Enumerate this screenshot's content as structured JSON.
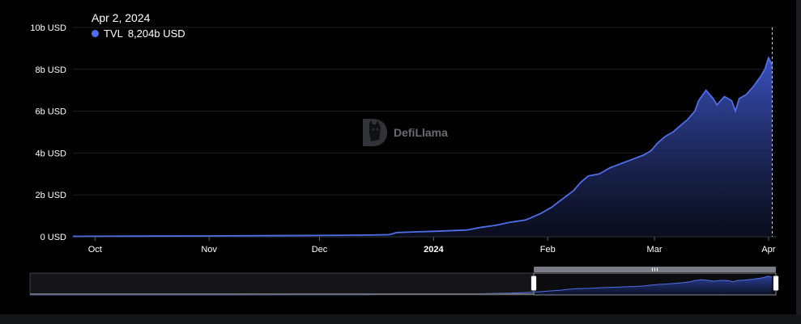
{
  "tooltip": {
    "date": "Apr 2, 2024",
    "series_name": "TVL",
    "value": "8,204b USD"
  },
  "watermark": {
    "text": "DefiLlama"
  },
  "colors": {
    "accent": "#4f6ee8",
    "background": "#000000"
  },
  "chart_data": {
    "type": "area",
    "title": "",
    "xlabel": "",
    "ylabel": "",
    "ylim": [
      0,
      10
    ],
    "y_ticks": [
      {
        "value": 0,
        "label": "0 USD"
      },
      {
        "value": 2,
        "label": "2b USD"
      },
      {
        "value": 4,
        "label": "4b USD"
      },
      {
        "value": 6,
        "label": "6b USD"
      },
      {
        "value": 8,
        "label": "8b USD"
      },
      {
        "value": 10,
        "label": "10b USD"
      }
    ],
    "x_range": [
      "2023-09-25",
      "2024-04-03"
    ],
    "x_ticks": [
      {
        "date": "2023-10-01",
        "label": "Oct",
        "bold": false
      },
      {
        "date": "2023-11-01",
        "label": "Nov",
        "bold": false
      },
      {
        "date": "2023-12-01",
        "label": "Dec",
        "bold": false
      },
      {
        "date": "2024-01-01",
        "label": "2024",
        "bold": true
      },
      {
        "date": "2024-02-01",
        "label": "Feb",
        "bold": false
      },
      {
        "date": "2024-03-01",
        "label": "Mar",
        "bold": false
      },
      {
        "date": "2024-04-01",
        "label": "Apr",
        "bold": false
      }
    ],
    "series": [
      {
        "name": "TVL",
        "points": [
          [
            "2023-09-25",
            0.02
          ],
          [
            "2023-10-15",
            0.03
          ],
          [
            "2023-11-01",
            0.04
          ],
          [
            "2023-11-15",
            0.05
          ],
          [
            "2023-12-01",
            0.06
          ],
          [
            "2023-12-15",
            0.08
          ],
          [
            "2023-12-20",
            0.1
          ],
          [
            "2023-12-22",
            0.2
          ],
          [
            "2023-12-28",
            0.24
          ],
          [
            "2024-01-01",
            0.26
          ],
          [
            "2024-01-10",
            0.32
          ],
          [
            "2024-01-14",
            0.45
          ],
          [
            "2024-01-18",
            0.55
          ],
          [
            "2024-01-22",
            0.7
          ],
          [
            "2024-01-26",
            0.8
          ],
          [
            "2024-01-30",
            1.1
          ],
          [
            "2024-02-02",
            1.4
          ],
          [
            "2024-02-05",
            1.8
          ],
          [
            "2024-02-08",
            2.2
          ],
          [
            "2024-02-10",
            2.6
          ],
          [
            "2024-02-12",
            2.9
          ],
          [
            "2024-02-15",
            3.0
          ],
          [
            "2024-02-18",
            3.3
          ],
          [
            "2024-02-21",
            3.5
          ],
          [
            "2024-02-24",
            3.7
          ],
          [
            "2024-02-27",
            3.9
          ],
          [
            "2024-02-29",
            4.1
          ],
          [
            "2024-03-02",
            4.5
          ],
          [
            "2024-03-04",
            4.8
          ],
          [
            "2024-03-06",
            5.0
          ],
          [
            "2024-03-08",
            5.3
          ],
          [
            "2024-03-10",
            5.6
          ],
          [
            "2024-03-12",
            6.0
          ],
          [
            "2024-03-13",
            6.5
          ],
          [
            "2024-03-15",
            7.0
          ],
          [
            "2024-03-17",
            6.6
          ],
          [
            "2024-03-18",
            6.3
          ],
          [
            "2024-03-20",
            6.7
          ],
          [
            "2024-03-22",
            6.5
          ],
          [
            "2024-03-23",
            6.0
          ],
          [
            "2024-03-24",
            6.6
          ],
          [
            "2024-03-26",
            6.8
          ],
          [
            "2024-03-28",
            7.2
          ],
          [
            "2024-03-30",
            7.7
          ],
          [
            "2024-03-31",
            8.0
          ],
          [
            "2024-04-01",
            8.55
          ],
          [
            "2024-04-02",
            8.204
          ]
        ]
      }
    ],
    "hover_date": "2024-04-02",
    "grid": true,
    "brush": {
      "selected_range": [
        "2024-02-01",
        "2024-04-02"
      ]
    }
  }
}
